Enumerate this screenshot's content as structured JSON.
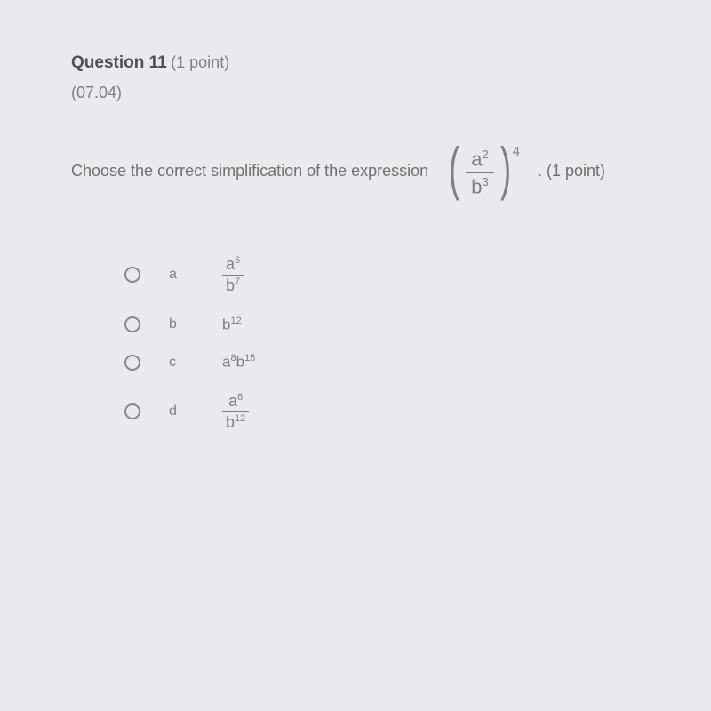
{
  "question": {
    "number": "Question 11",
    "points_label": "(1 point)",
    "code": "(07.04)",
    "prompt": "Choose the correct simplification of the expression",
    "points_after": ". (1 point)",
    "expression": {
      "numerator_base": "a",
      "numerator_exp": "2",
      "denominator_base": "b",
      "denominator_exp": "3",
      "outer_exp": "4"
    }
  },
  "options": [
    {
      "letter": "a",
      "type": "fraction",
      "num_base": "a",
      "num_exp": "6",
      "den_base": "b",
      "den_exp": "7"
    },
    {
      "letter": "b",
      "type": "term",
      "base": "b",
      "exp": "12"
    },
    {
      "letter": "c",
      "type": "product",
      "base1": "a",
      "exp1": "8",
      "base2": "b",
      "exp2": "15"
    },
    {
      "letter": "d",
      "type": "fraction",
      "num_base": "a",
      "num_exp": "8",
      "den_base": "b",
      "den_exp": "12"
    }
  ],
  "colors": {
    "background": "#e8eaed",
    "text_primary": "#505050",
    "text_secondary": "#808080",
    "border": "#888"
  }
}
